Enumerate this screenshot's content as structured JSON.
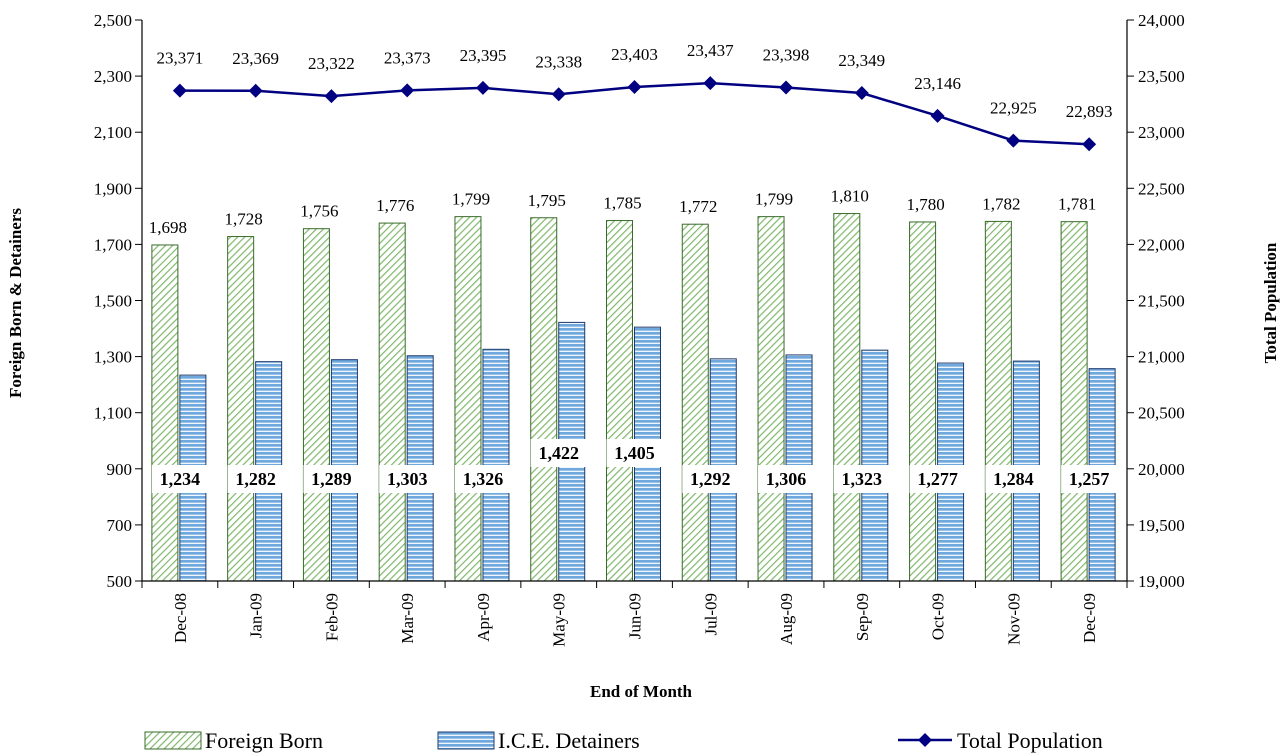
{
  "chart_data": {
    "type": "bar",
    "xlabel": "End of Month",
    "ylabel": "Foreign Born & Detainers",
    "y2label": "Total Population",
    "ylim": [
      500,
      2500
    ],
    "y2lim": [
      19000,
      24000
    ],
    "yticks": [
      "2,500",
      "2,300",
      "2,100",
      "1,900",
      "1,700",
      "1,500",
      "1,300",
      "1,100",
      "900",
      "700",
      "500"
    ],
    "y2ticks": [
      "24,000",
      "23,500",
      "23,000",
      "22,500",
      "22,000",
      "21,500",
      "21,000",
      "20,500",
      "20,000",
      "19,500",
      "19,000"
    ],
    "categories": [
      "Dec-08",
      "Jan-09",
      "Feb-09",
      "Mar-09",
      "Apr-09",
      "May-09",
      "Jun-09",
      "Jul-09",
      "Aug-09",
      "Sep-09",
      "Oct-09",
      "Nov-09",
      "Dec-09"
    ],
    "series": [
      {
        "name": "Foreign Born",
        "axis": "left",
        "style": "green-diagonal-hatch-bar",
        "values": [
          1698,
          1728,
          1756,
          1776,
          1799,
          1795,
          1785,
          1772,
          1799,
          1810,
          1780,
          1782,
          1781
        ],
        "labels": [
          "1,698",
          "1,728",
          "1,756",
          "1,776",
          "1,799",
          "1,795",
          "1,785",
          "1,772",
          "1,799",
          "1,810",
          "1,780",
          "1,782",
          "1,781"
        ]
      },
      {
        "name": "I.C.E. Detainers",
        "axis": "left",
        "style": "blue-horizontal-stripe-bar",
        "values": [
          1234,
          1282,
          1289,
          1303,
          1326,
          1422,
          1405,
          1292,
          1306,
          1323,
          1277,
          1284,
          1257
        ],
        "labels": [
          "1,234",
          "1,282",
          "1,289",
          "1,303",
          "1,326",
          "1,422",
          "1,405",
          "1,292",
          "1,306",
          "1,323",
          "1,277",
          "1,284",
          "1,257"
        ]
      },
      {
        "name": "Total Population",
        "axis": "right",
        "style": "navy-line-diamond-markers",
        "values": [
          23371,
          23369,
          23322,
          23373,
          23395,
          23338,
          23403,
          23437,
          23398,
          23349,
          23146,
          22925,
          22893
        ],
        "labels": [
          "23,371",
          "23,369",
          "23,322",
          "23,373",
          "23,395",
          "23,338",
          "23,403",
          "23,437",
          "23,398",
          "23,349",
          "23,146",
          "22,925",
          "22,893"
        ]
      }
    ],
    "colors": {
      "foreign_born_fill": "#8fbf7a",
      "foreign_born_border": "#3a6b2a",
      "detainer_fill": "#6fa8dc",
      "detainer_stripe": "#ffffff",
      "detainer_border": "#1f3b6e",
      "total_line": "#000080"
    },
    "legend": "bottom"
  }
}
